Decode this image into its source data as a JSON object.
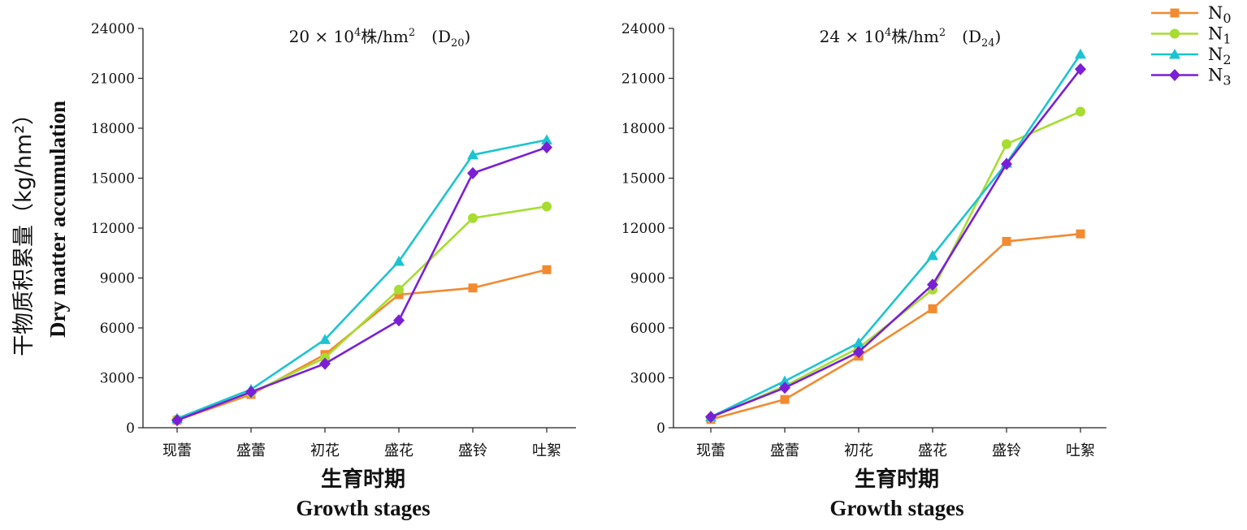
{
  "y_title": {
    "cn": "干物质积累量（kg/hm²）",
    "en": "Dry matter accumulation"
  },
  "x_title": {
    "cn": "生育时期",
    "en": "Growth stages"
  },
  "legend": [
    {
      "base": "N",
      "sub": "0",
      "color": "#F28A30",
      "marker": "square"
    },
    {
      "base": "N",
      "sub": "1",
      "color": "#A6DD30",
      "marker": "circle"
    },
    {
      "base": "N",
      "sub": "2",
      "color": "#1BC4D0",
      "marker": "triangle"
    },
    {
      "base": "N",
      "sub": "3",
      "color": "#7A1FD6",
      "marker": "diamond"
    }
  ],
  "chart_data": [
    {
      "type": "line",
      "title": "20×10⁴株/hm²（D₂₀）",
      "title_parts": {
        "prefix": "20 × 10",
        "sup": "4",
        "mid": "株/hm",
        "sup2": "2",
        "paren": "D",
        "sub": "20"
      },
      "categories": [
        "现蕾",
        "盛蕾",
        "初花",
        "盛花",
        "盛铃",
        "吐絮"
      ],
      "xlabel": "生育时期 Growth stages",
      "ylabel": "干物质积累量（kg/hm²） Dry matter accumulation",
      "ylim": [
        0,
        24000
      ],
      "yticks": [
        0,
        3000,
        6000,
        9000,
        12000,
        15000,
        18000,
        21000,
        24000
      ],
      "series": [
        {
          "name": "N0",
          "values": [
            450,
            2000,
            4400,
            8000,
            8400,
            9500
          ]
        },
        {
          "name": "N1",
          "values": [
            500,
            2100,
            4200,
            8300,
            12600,
            13300
          ]
        },
        {
          "name": "N2",
          "values": [
            550,
            2300,
            5300,
            10000,
            16400,
            17300
          ]
        },
        {
          "name": "N3",
          "values": [
            450,
            2150,
            3850,
            6450,
            15300,
            16850
          ]
        }
      ]
    },
    {
      "type": "line",
      "title": "24×10⁴株/hm²（D₂₄）",
      "title_parts": {
        "prefix": "24 × 10",
        "sup": "4",
        "mid": "株/hm",
        "sup2": "2",
        "paren": "D",
        "sub": "24"
      },
      "categories": [
        "现蕾",
        "盛蕾",
        "初花",
        "盛花",
        "盛铃",
        "吐絮"
      ],
      "xlabel": "生育时期 Growth stages",
      "ylabel": "",
      "ylim": [
        0,
        24000
      ],
      "yticks": [
        0,
        3000,
        6000,
        9000,
        12000,
        15000,
        18000,
        21000,
        24000
      ],
      "series": [
        {
          "name": "N0",
          "values": [
            500,
            1700,
            4300,
            7150,
            11200,
            11650
          ]
        },
        {
          "name": "N1",
          "values": [
            600,
            2500,
            4800,
            8300,
            17050,
            19000
          ]
        },
        {
          "name": "N2",
          "values": [
            650,
            2800,
            5100,
            10350,
            15900,
            22450
          ]
        },
        {
          "name": "N3",
          "values": [
            650,
            2400,
            4550,
            8600,
            15850,
            21550
          ]
        }
      ]
    }
  ]
}
